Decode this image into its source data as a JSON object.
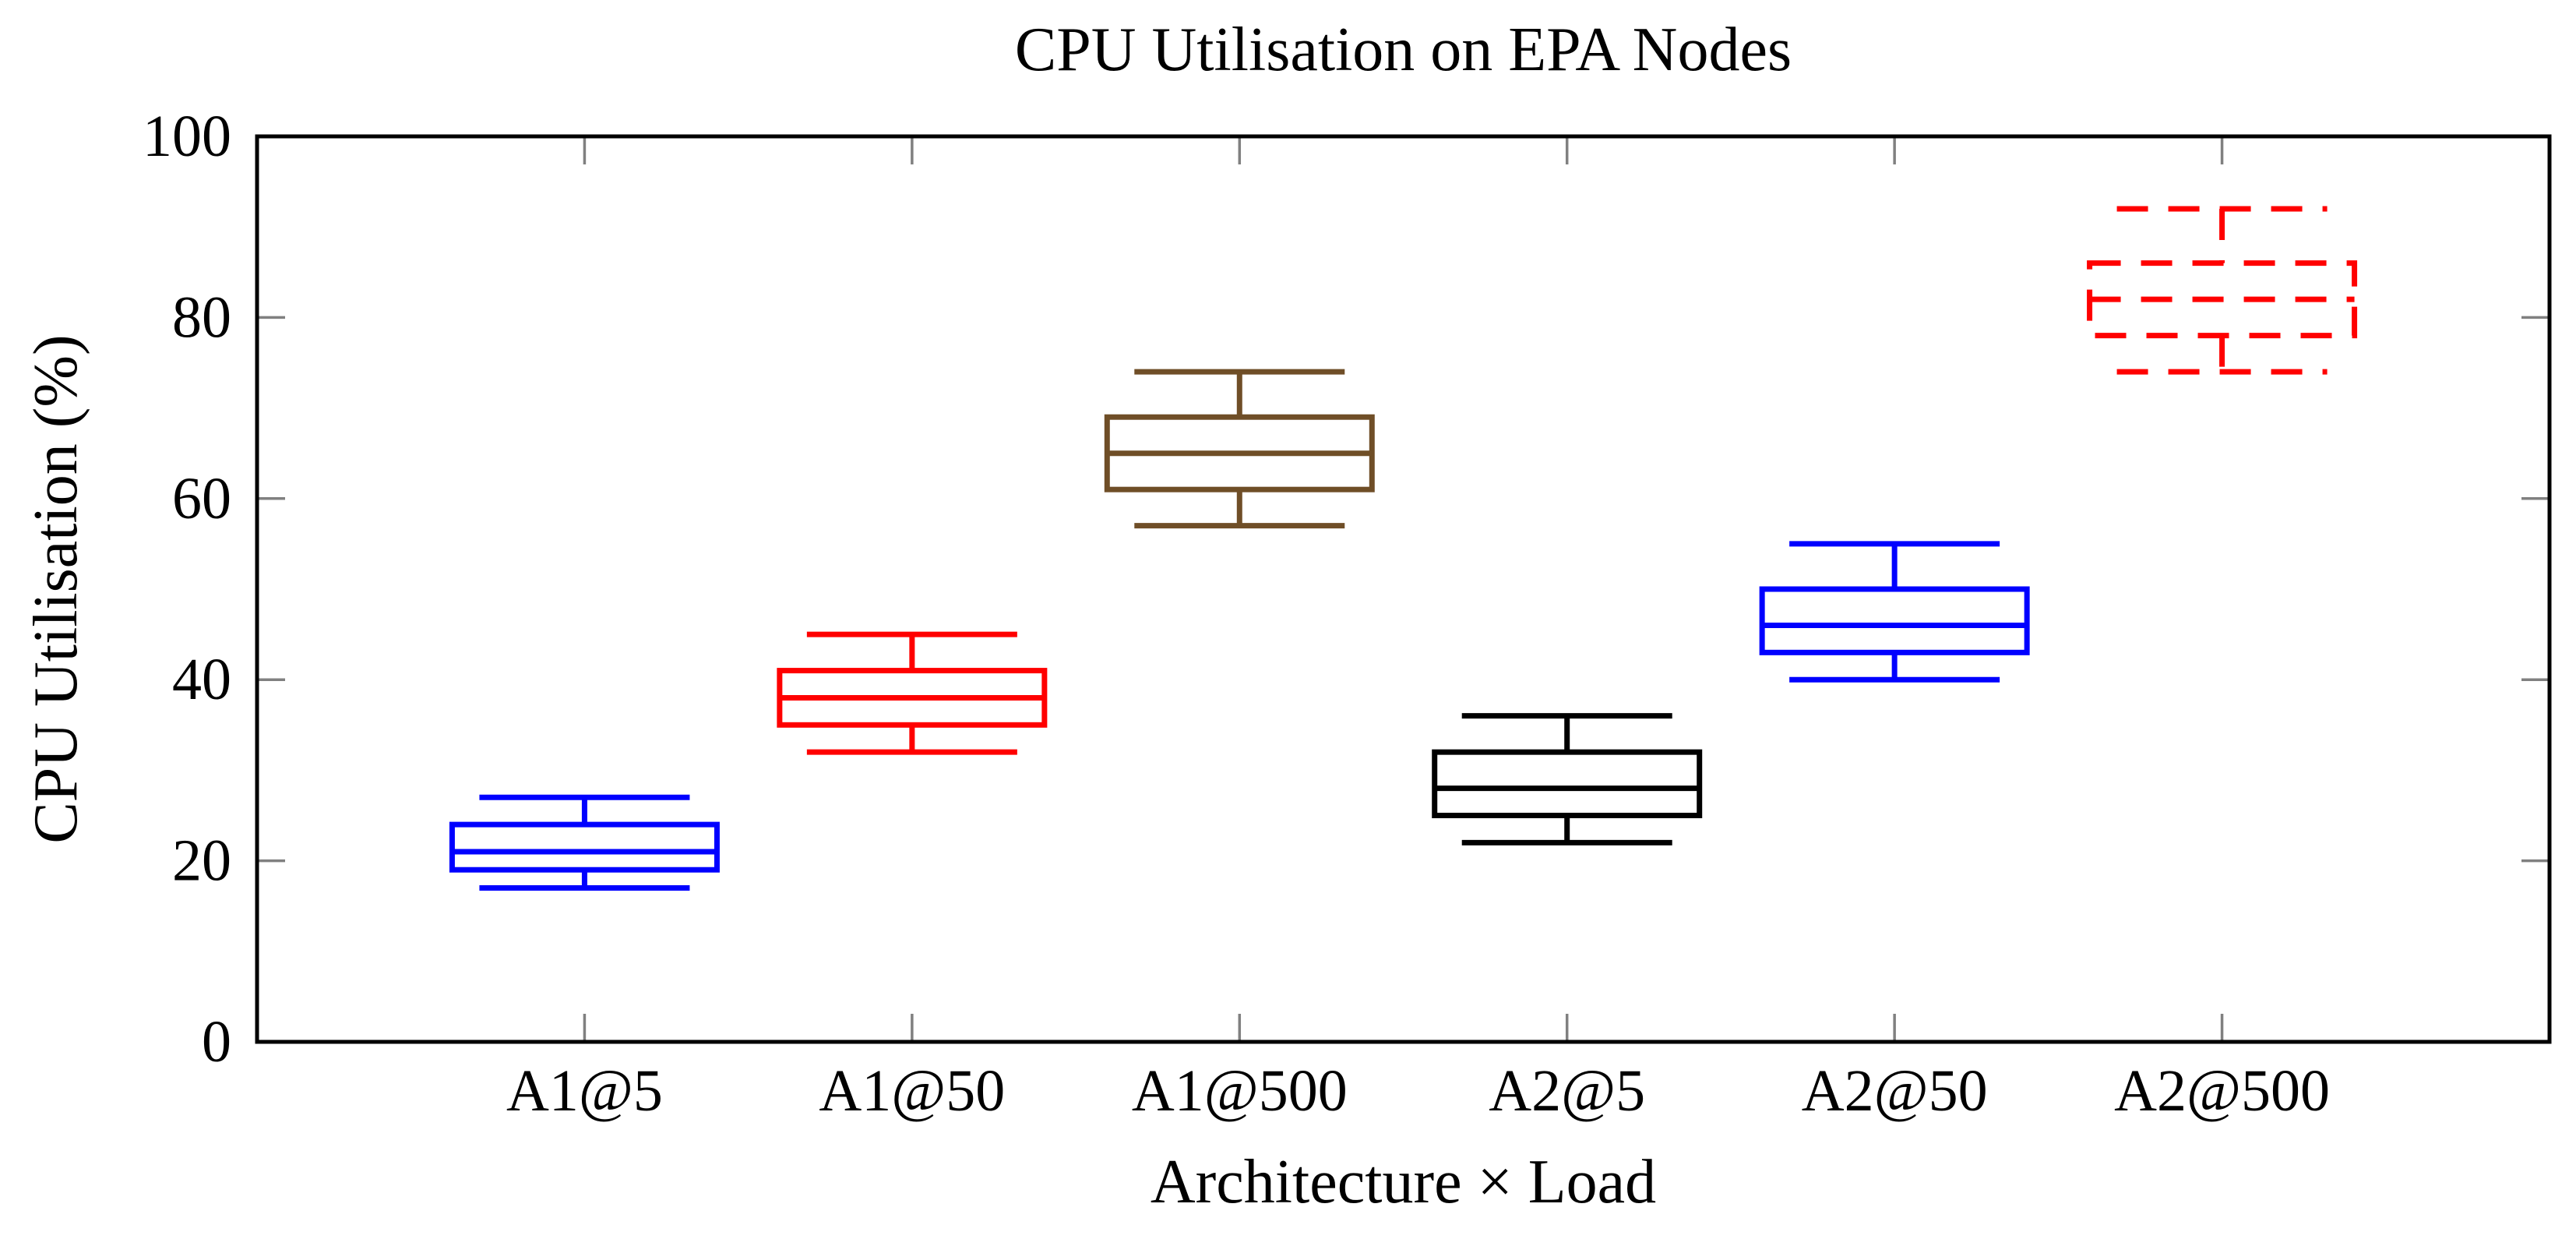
{
  "chart_data": {
    "type": "boxplot",
    "title": "CPU Utilisation on EPA Nodes",
    "xlabel": "Architecture × Load",
    "ylabel": "CPU Utilisation (%)",
    "ylim": [
      0,
      100
    ],
    "y_ticks": [
      0,
      20,
      40,
      60,
      80,
      100
    ],
    "grid": false,
    "legend_position": "none",
    "axis_color": "#000000",
    "tick_color": "#808080",
    "categories": [
      "A1@5",
      "A1@50",
      "A1@500",
      "A2@5",
      "A2@50",
      "A2@500"
    ],
    "series": [
      {
        "label": "A1@5",
        "color": "#0000ff",
        "line_style": "solid",
        "whisker_low": 17,
        "q1": 19,
        "median": 21,
        "q3": 24,
        "whisker_high": 27
      },
      {
        "label": "A1@50",
        "color": "#ff0000",
        "line_style": "solid",
        "whisker_low": 32,
        "q1": 35,
        "median": 38,
        "q3": 41,
        "whisker_high": 45
      },
      {
        "label": "A1@500",
        "color": "#6f4e27",
        "line_style": "solid",
        "whisker_low": 57,
        "q1": 61,
        "median": 65,
        "q3": 69,
        "whisker_high": 74
      },
      {
        "label": "A2@5",
        "color": "#000000",
        "line_style": "solid",
        "whisker_low": 22,
        "q1": 25,
        "median": 28,
        "q3": 32,
        "whisker_high": 36
      },
      {
        "label": "A2@50",
        "color": "#0000ff",
        "line_style": "solid",
        "whisker_low": 40,
        "q1": 43,
        "median": 46,
        "q3": 50,
        "whisker_high": 55
      },
      {
        "label": "A2@500",
        "color": "#ff0000",
        "line_style": "dashed",
        "whisker_low": 74,
        "q1": 78,
        "median": 82,
        "q3": 86,
        "whisker_high": 92
      }
    ]
  }
}
